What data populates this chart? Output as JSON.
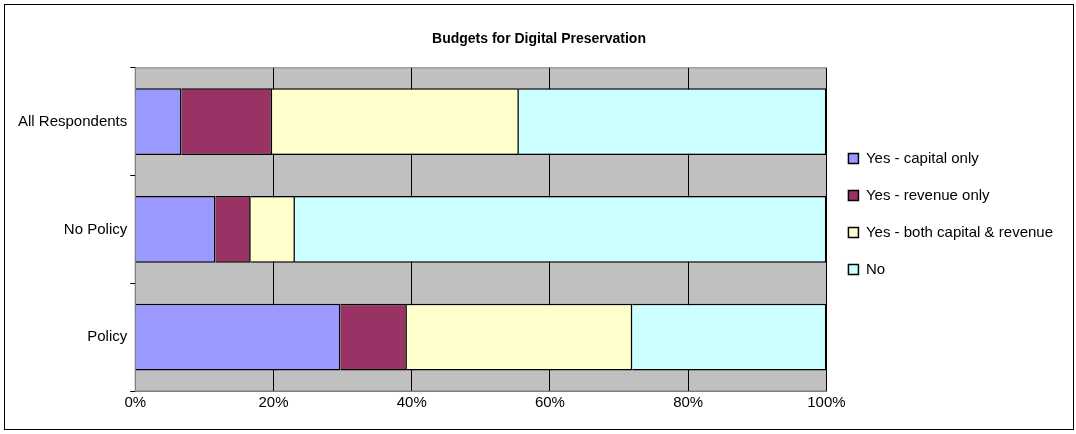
{
  "chart_data": {
    "type": "bar",
    "title": "Budgets for Digital Preservation",
    "orientation": "horizontal",
    "stacked": true,
    "categories": [
      "All Respondents",
      "No Policy",
      "Policy"
    ],
    "series": [
      {
        "name": "Yes - capital only",
        "color": "#9999ff",
        "values": [
          6.7,
          11.6,
          29.7
        ]
      },
      {
        "name": "Yes - revenue only",
        "color": "#993366",
        "values": [
          13.1,
          5.1,
          9.6
        ]
      },
      {
        "name": "Yes - both capital & revenue",
        "color": "#ffffcc",
        "values": [
          35.7,
          6.4,
          32.6
        ]
      },
      {
        "name": "No",
        "color": "#ccffff",
        "values": [
          44.5,
          76.9,
          28.1
        ]
      }
    ],
    "xlim": [
      0,
      100
    ],
    "xticks": [
      {
        "value": 0,
        "label": "0%"
      },
      {
        "value": 20,
        "label": "20%"
      },
      {
        "value": 40,
        "label": "40%"
      },
      {
        "value": 60,
        "label": "60%"
      },
      {
        "value": 80,
        "label": "80%"
      },
      {
        "value": 100,
        "label": "100%"
      }
    ],
    "grid": "x",
    "legend": "right"
  }
}
